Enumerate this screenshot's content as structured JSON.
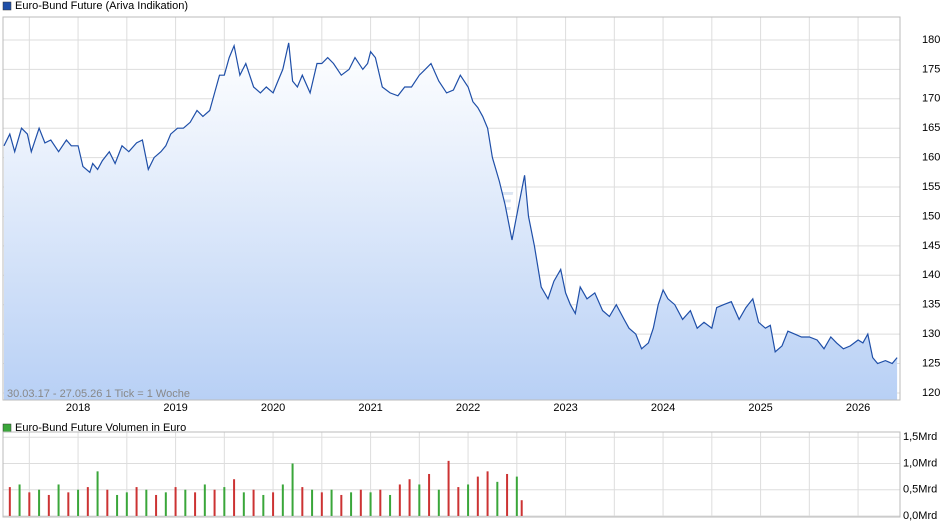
{
  "chart_data": [
    {
      "type": "line",
      "title": "Euro-Bund Future (Ariva Indikation)",
      "subtitle": "30.03.17 - 27.05.26   1 Tick = 1 Woche",
      "watermark": "ARIVA.DE",
      "xlim": [
        2017.23,
        2026.43
      ],
      "xticks": [
        2018,
        2019,
        2020,
        2021,
        2022,
        2023,
        2024,
        2025,
        2026
      ],
      "ylim": [
        118.8,
        183.9
      ],
      "yticks": [
        120,
        125,
        130,
        135,
        140,
        145,
        150,
        155,
        160,
        165,
        170,
        175,
        180
      ],
      "grid": true,
      "series": [
        {
          "name": "Euro-Bund Future (Ariva Indikation)",
          "color": "#1f4fa8",
          "x": [
            2017.24,
            2017.3,
            2017.35,
            2017.42,
            2017.48,
            2017.52,
            2017.6,
            2017.66,
            2017.72,
            2017.8,
            2017.88,
            2017.93,
            2018.0,
            2018.05,
            2018.12,
            2018.15,
            2018.2,
            2018.25,
            2018.32,
            2018.38,
            2018.45,
            2018.52,
            2018.6,
            2018.66,
            2018.72,
            2018.78,
            2018.85,
            2018.9,
            2018.95,
            2019.02,
            2019.08,
            2019.15,
            2019.22,
            2019.28,
            2019.35,
            2019.4,
            2019.45,
            2019.5,
            2019.55,
            2019.6,
            2019.66,
            2019.72,
            2019.8,
            2019.87,
            2019.93,
            2020.0,
            2020.05,
            2020.1,
            2020.16,
            2020.2,
            2020.25,
            2020.3,
            2020.38,
            2020.45,
            2020.5,
            2020.56,
            2020.62,
            2020.7,
            2020.78,
            2020.84,
            2020.92,
            2020.97,
            2021.0,
            2021.05,
            2021.12,
            2021.2,
            2021.28,
            2021.35,
            2021.42,
            2021.5,
            2021.56,
            2021.62,
            2021.7,
            2021.78,
            2021.85,
            2021.92,
            2022.0,
            2022.05,
            2022.1,
            2022.15,
            2022.2,
            2022.25,
            2022.32,
            2022.38,
            2022.45,
            2022.52,
            2022.58,
            2022.62,
            2022.68,
            2022.75,
            2022.82,
            2022.88,
            2022.95,
            2023.0,
            2023.05,
            2023.1,
            2023.15,
            2023.22,
            2023.3,
            2023.38,
            2023.45,
            2023.52,
            2023.6,
            2023.65,
            2023.72,
            2023.78,
            2023.85,
            2023.9,
            2023.95,
            2024.0,
            2024.05,
            2024.12,
            2024.2,
            2024.28,
            2024.35,
            2024.42,
            2024.5,
            2024.55,
            2024.62,
            2024.7,
            2024.78,
            2024.85,
            2024.92,
            2024.98,
            2025.05,
            2025.1,
            2025.15,
            2025.22,
            2025.28,
            2025.35,
            2025.42,
            2025.5,
            2025.58,
            2025.65,
            2025.72,
            2025.78,
            2025.85,
            2025.92,
            2026.0,
            2026.05,
            2026.1,
            2026.15,
            2026.2,
            2026.28,
            2026.35,
            2026.4
          ],
          "values": [
            162,
            164,
            161,
            165,
            164,
            161,
            165,
            162.5,
            163,
            161,
            163,
            162,
            162,
            158.5,
            157.5,
            159,
            158,
            159.5,
            161,
            159,
            162,
            161,
            162.5,
            163,
            158,
            160,
            161,
            162,
            164,
            165,
            165,
            166,
            168,
            167,
            168,
            171,
            174,
            174,
            177,
            179,
            174,
            176,
            172,
            171,
            172,
            171,
            173,
            175,
            179.5,
            173,
            172,
            174,
            171,
            176,
            176,
            177,
            176,
            174,
            175,
            177,
            175,
            176,
            178,
            177,
            172,
            171,
            170.5,
            172,
            172,
            174,
            175,
            176,
            173,
            171,
            171.5,
            174,
            172,
            169.5,
            168.5,
            167,
            165,
            160,
            156,
            152,
            146,
            152,
            157,
            150,
            145,
            138,
            136,
            139,
            141,
            137,
            135,
            133.5,
            138,
            136,
            137,
            134,
            133,
            135,
            132.5,
            131,
            130,
            127.5,
            128.5,
            131,
            135,
            137.5,
            136,
            135,
            132.5,
            134,
            131,
            132,
            131,
            134.5,
            135,
            135.5,
            132.5,
            134.5,
            136,
            132,
            131,
            131.5,
            127,
            128,
            130.5,
            130,
            129.5,
            129.5,
            129,
            127.5,
            129.5,
            128.5,
            127.5,
            128,
            129,
            128.5,
            130,
            126,
            125,
            125.5,
            125,
            126
          ]
        }
      ]
    },
    {
      "type": "bar",
      "title": "Euro-Bund Future Volumen in Euro",
      "xlim": [
        2017.23,
        2026.43
      ],
      "xticks": [
        2018,
        2019,
        2020,
        2021,
        2022,
        2023,
        2024,
        2025,
        2026
      ],
      "ylim": [
        -0.02,
        1.6
      ],
      "yticks": [
        {
          "value": 0,
          "label": "0,0Mrd"
        },
        {
          "value": 0.5,
          "label": "0,5Mrd"
        },
        {
          "value": 1,
          "label": "1,0Mrd"
        },
        {
          "value": 1.5,
          "label": "1,5Mrd"
        }
      ],
      "grid": true,
      "series": [
        {
          "name": "Euro-Bund Future Volumen in Euro",
          "color": "#3aa63a",
          "x": [
            2017.3,
            2017.4,
            2017.5,
            2017.6,
            2017.7,
            2017.8,
            2017.9,
            2018.0,
            2018.1,
            2018.2,
            2018.3,
            2018.4,
            2018.5,
            2018.6,
            2018.7,
            2018.8,
            2018.9,
            2019.0,
            2019.1,
            2019.2,
            2019.3,
            2019.4,
            2019.5,
            2019.6,
            2019.7,
            2019.8,
            2019.9,
            2020.0,
            2020.1,
            2020.2,
            2020.3,
            2020.4,
            2020.5,
            2020.6,
            2020.7,
            2020.8,
            2020.9,
            2021.0,
            2021.1,
            2021.2,
            2021.3,
            2021.4,
            2021.5,
            2021.6,
            2021.7,
            2021.8,
            2021.9,
            2022.0,
            2022.1,
            2022.2,
            2022.3,
            2022.4,
            2022.5,
            2022.55
          ],
          "values": [
            0.55,
            0.6,
            0.45,
            0.5,
            0.4,
            0.6,
            0.45,
            0.5,
            0.55,
            0.85,
            0.5,
            0.4,
            0.45,
            0.55,
            0.5,
            0.4,
            0.45,
            0.55,
            0.5,
            0.45,
            0.6,
            0.5,
            0.55,
            0.7,
            0.45,
            0.5,
            0.4,
            0.45,
            0.6,
            1.0,
            0.55,
            0.5,
            0.45,
            0.5,
            0.4,
            0.45,
            0.5,
            0.45,
            0.5,
            0.4,
            0.6,
            0.7,
            0.6,
            0.8,
            0.5,
            1.05,
            0.55,
            0.6,
            0.75,
            0.85,
            0.65,
            0.8,
            0.75,
            0.3
          ],
          "bar_colors": [
            "#c33",
            "#3aa63a",
            "#c33",
            "#3aa63a",
            "#c33",
            "#3aa63a",
            "#c33",
            "#3aa63a",
            "#c33",
            "#3aa63a",
            "#c33",
            "#3aa63a",
            "#3aa63a",
            "#c33",
            "#3aa63a",
            "#c33",
            "#3aa63a",
            "#c33",
            "#3aa63a",
            "#c33",
            "#3aa63a",
            "#c33",
            "#3aa63a",
            "#c33",
            "#3aa63a",
            "#c33",
            "#3aa63a",
            "#c33",
            "#3aa63a",
            "#3aa63a",
            "#c33",
            "#3aa63a",
            "#c33",
            "#3aa63a",
            "#c33",
            "#3aa63a",
            "#c33",
            "#3aa63a",
            "#c33",
            "#3aa63a",
            "#c33",
            "#c33",
            "#3aa63a",
            "#c33",
            "#3aa63a",
            "#c33",
            "#c33",
            "#3aa63a",
            "#c33",
            "#c33",
            "#3aa63a",
            "#c33",
            "#3aa63a",
            "#c33"
          ]
        }
      ]
    }
  ]
}
